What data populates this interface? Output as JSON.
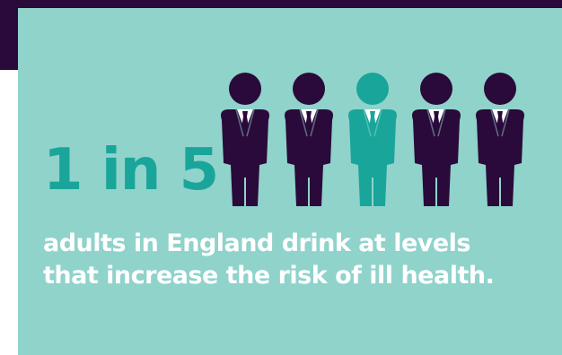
{
  "infographic": {
    "stat_text": "1 in 5",
    "caption_line_1": "adults in England drink at levels",
    "caption_line_2": "that increase the risk of ill health.",
    "figures_total": 5,
    "highlighted_figure_index": 2
  },
  "colors": {
    "header_band": "#2a0a3a",
    "panel_background": "#8fd3cb",
    "figure_default": "#2a0a3a",
    "figure_highlight": "#1aa59a",
    "stat_text": "#1aa59a",
    "caption_text": "#ffffff"
  },
  "icons": {
    "figure": "person-in-suit-icon"
  }
}
